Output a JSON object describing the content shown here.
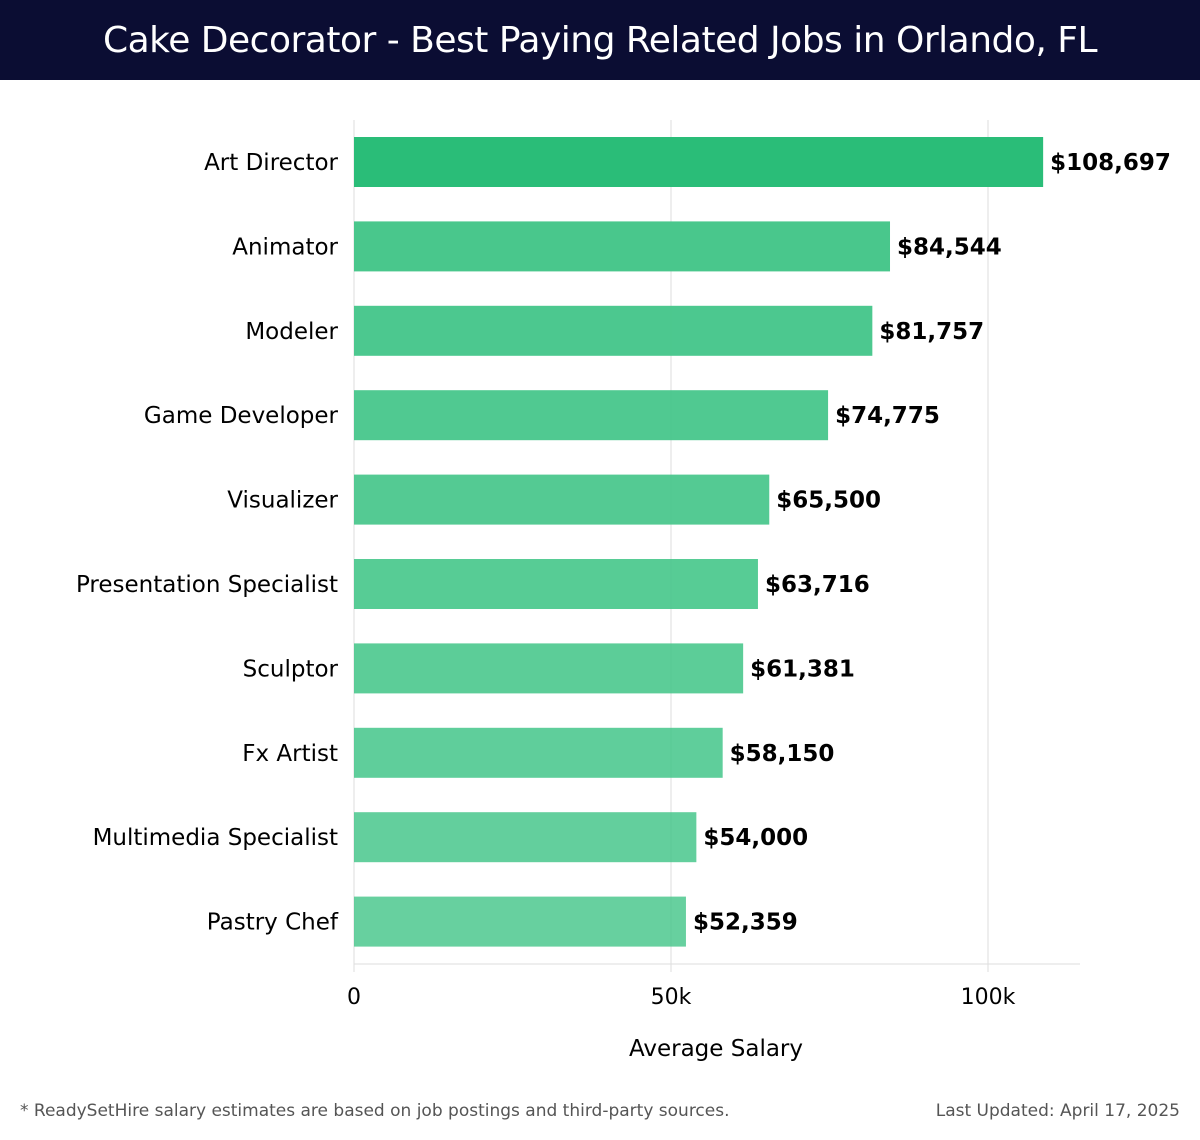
{
  "colors": {
    "header_bg": "#0b0d33",
    "bar_top": "#2abd78",
    "bar_other": "#45c68a",
    "grid": "#dddddd",
    "text": "#000000",
    "footer_text": "#555555"
  },
  "footer": {
    "note": "* ReadySetHire salary estimates are based on job postings and third-party sources.",
    "updated": "Last Updated: April 17, 2025"
  },
  "chart_data": {
    "type": "bar",
    "orientation": "horizontal",
    "title": "Cake Decorator - Best Paying Related Jobs in Orlando, FL",
    "xlabel": "Average Salary",
    "ylabel": "",
    "xlim": [
      0,
      115000
    ],
    "x_ticks": [
      0,
      50000,
      100000
    ],
    "x_tick_labels": [
      "0",
      "50k",
      "100k"
    ],
    "grid": true,
    "categories": [
      "Art Director",
      "Animator",
      "Modeler",
      "Game Developer",
      "Visualizer",
      "Presentation Specialist",
      "Sculptor",
      "Fx Artist",
      "Multimedia Specialist",
      "Pastry Chef"
    ],
    "values": [
      108697,
      84544,
      81757,
      74775,
      65500,
      63716,
      61381,
      58150,
      54000,
      52359
    ],
    "value_labels": [
      "$108,697",
      "$84,544",
      "$81,757",
      "$74,775",
      "$65,500",
      "$63,716",
      "$61,381",
      "$58,150",
      "$54,000",
      "$52,359"
    ]
  }
}
